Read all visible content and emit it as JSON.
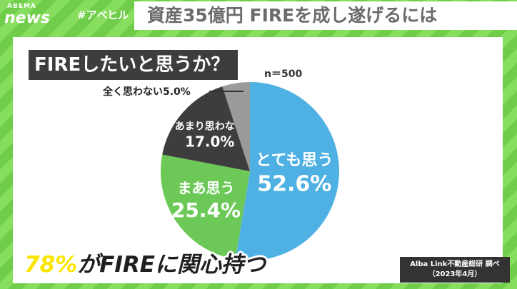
{
  "branding": {
    "logo_top": "ABEMA",
    "logo_bottom": "news",
    "hashtag": "#アベヒル"
  },
  "headline": "資産35億円 FIREを成し遂げるには",
  "question": "FIREしたいと思うか？",
  "sample_size": "n＝500",
  "caption": {
    "highlight": "78%",
    "rest": "がFIREに関心持つ"
  },
  "source": {
    "line1": "Alba Link不動産総研 調べ",
    "line2": "（2023年4月）"
  },
  "colors": {
    "very_much": "#4fb0e3",
    "somewhat": "#6cc957",
    "not_really": "#3d3d3d",
    "not_at_all": "#9a9a9a",
    "background": "#7ed957"
  },
  "chart_data": {
    "type": "pie",
    "title": "FIREしたいと思うか？",
    "categories": [
      "とても思う",
      "まあ思う",
      "あまり思わない",
      "全く思わない"
    ],
    "values": [
      52.6,
      25.4,
      17.0,
      5.0
    ],
    "value_labels": [
      "52.6%",
      "25.4%",
      "17.0%",
      "5.0%"
    ],
    "start": "12 o'clock, clockwise",
    "n": "n＝500"
  }
}
